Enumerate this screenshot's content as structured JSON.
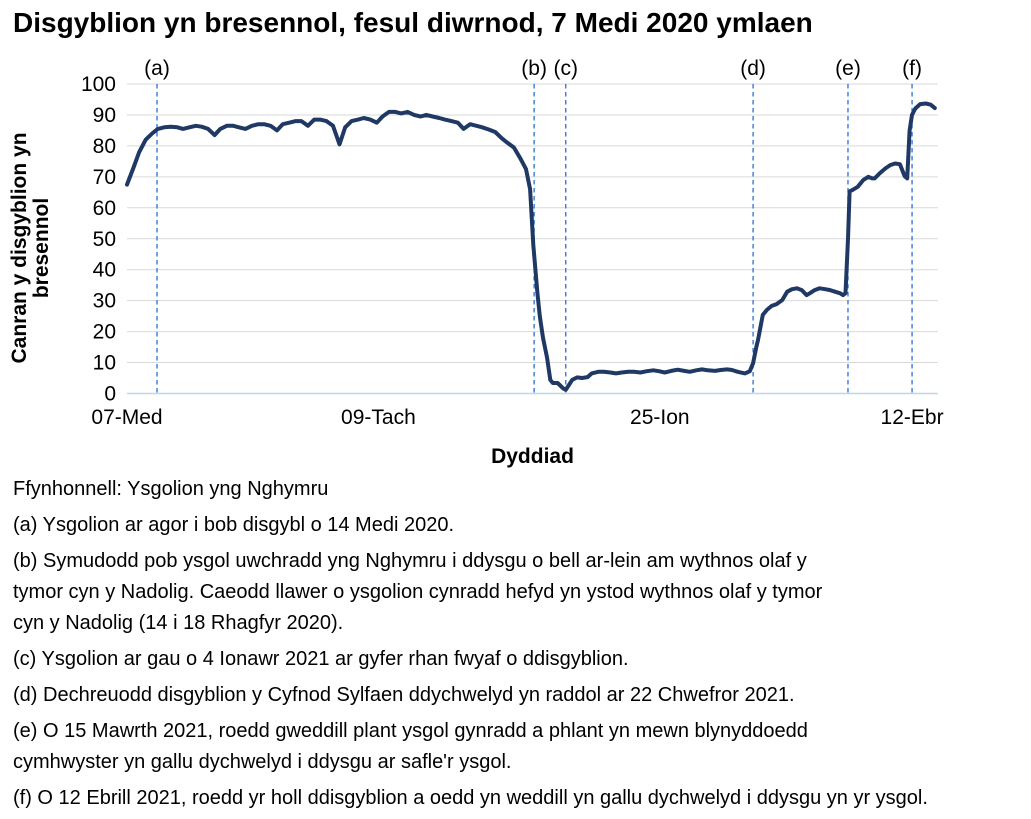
{
  "title": "Disgyblion yn bresennol, fesul diwrnod, 7 Medi 2020 ymlaen",
  "chart_data": {
    "type": "line",
    "title": "Disgyblion yn bresennol, fesul diwrnod, 7 Medi 2020 ymlaen",
    "xlabel": "Dyddiad",
    "ylabel": "Canran y disgyblion yn bresennol",
    "ylabel_lines": [
      "Canran y disgyblion yn",
      "bresennol"
    ],
    "ylim": [
      0,
      100
    ],
    "yticks": [
      0,
      10,
      20,
      30,
      40,
      50,
      60,
      70,
      80,
      90,
      100
    ],
    "x_ticks": [
      {
        "label": "07-Med",
        "f": 0.0
      },
      {
        "label": "09-Tach",
        "f": 0.31
      },
      {
        "label": "25-Ion",
        "f": 0.657
      },
      {
        "label": "12-Ebr",
        "f": 0.968
      }
    ],
    "annotations": [
      {
        "label": "(a)",
        "f": 0.037
      },
      {
        "label": "(b)",
        "f": 0.502
      },
      {
        "label": "(c)",
        "f": 0.541
      },
      {
        "label": "(d)",
        "f": 0.772
      },
      {
        "label": "(e)",
        "f": 0.889
      },
      {
        "label": "(f)",
        "f": 0.968
      }
    ],
    "colors": {
      "line": "#1f3864",
      "grid": "#d9d9d9",
      "baseline": "#bdd7ee",
      "annotation_line": "#2b6fd9",
      "text": "#000000"
    },
    "series": [
      {
        "name": "Canran y disgyblion yn bresennol",
        "points": [
          [
            0.0,
            67.5
          ],
          [
            0.008,
            73
          ],
          [
            0.015,
            78
          ],
          [
            0.023,
            82
          ],
          [
            0.031,
            84
          ],
          [
            0.038,
            85.5
          ],
          [
            0.046,
            86
          ],
          [
            0.054,
            86.2
          ],
          [
            0.062,
            86
          ],
          [
            0.069,
            85.5
          ],
          [
            0.077,
            86
          ],
          [
            0.085,
            86.5
          ],
          [
            0.092,
            86.2
          ],
          [
            0.1,
            85.5
          ],
          [
            0.108,
            83.5
          ],
          [
            0.115,
            85.5
          ],
          [
            0.123,
            86.5
          ],
          [
            0.131,
            86.5
          ],
          [
            0.138,
            86
          ],
          [
            0.146,
            85.5
          ],
          [
            0.154,
            86.5
          ],
          [
            0.162,
            87
          ],
          [
            0.169,
            87
          ],
          [
            0.177,
            86.5
          ],
          [
            0.185,
            85
          ],
          [
            0.192,
            87
          ],
          [
            0.2,
            87.5
          ],
          [
            0.208,
            88
          ],
          [
            0.215,
            88
          ],
          [
            0.223,
            86.5
          ],
          [
            0.231,
            88.5
          ],
          [
            0.238,
            88.5
          ],
          [
            0.246,
            88
          ],
          [
            0.254,
            86.5
          ],
          [
            0.262,
            80.5
          ],
          [
            0.269,
            86
          ],
          [
            0.277,
            88
          ],
          [
            0.285,
            88.5
          ],
          [
            0.292,
            89
          ],
          [
            0.3,
            88.5
          ],
          [
            0.308,
            87.5
          ],
          [
            0.315,
            89.5
          ],
          [
            0.323,
            91
          ],
          [
            0.331,
            91
          ],
          [
            0.338,
            90.5
          ],
          [
            0.346,
            91
          ],
          [
            0.354,
            90
          ],
          [
            0.362,
            89.5
          ],
          [
            0.369,
            90
          ],
          [
            0.377,
            89.5
          ],
          [
            0.385,
            89
          ],
          [
            0.392,
            88.5
          ],
          [
            0.4,
            88
          ],
          [
            0.408,
            87.5
          ],
          [
            0.415,
            85.5
          ],
          [
            0.423,
            87
          ],
          [
            0.431,
            86.5
          ],
          [
            0.438,
            86
          ],
          [
            0.446,
            85.3
          ],
          [
            0.454,
            84.5
          ],
          [
            0.462,
            82.5
          ],
          [
            0.469,
            81
          ],
          [
            0.477,
            79.5
          ],
          [
            0.485,
            76
          ],
          [
            0.492,
            72.5
          ],
          [
            0.497,
            66
          ],
          [
            0.501,
            48
          ],
          [
            0.506,
            32.5
          ],
          [
            0.509,
            25
          ],
          [
            0.513,
            18
          ],
          [
            0.518,
            11.5
          ],
          [
            0.522,
            4.4
          ],
          [
            0.525,
            3.4
          ],
          [
            0.531,
            3.4
          ],
          [
            0.538,
            1.6
          ],
          [
            0.541,
            1.2
          ],
          [
            0.549,
            4.4
          ],
          [
            0.555,
            5.2
          ],
          [
            0.561,
            5.0
          ],
          [
            0.568,
            5.3
          ],
          [
            0.573,
            6.5
          ],
          [
            0.581,
            7
          ],
          [
            0.588,
            7
          ],
          [
            0.596,
            6.8
          ],
          [
            0.603,
            6.5
          ],
          [
            0.61,
            6.8
          ],
          [
            0.618,
            7
          ],
          [
            0.625,
            7
          ],
          [
            0.633,
            6.8
          ],
          [
            0.641,
            7.2
          ],
          [
            0.649,
            7.5
          ],
          [
            0.656,
            7.2
          ],
          [
            0.663,
            6.8
          ],
          [
            0.671,
            7.3
          ],
          [
            0.679,
            7.7
          ],
          [
            0.687,
            7.3
          ],
          [
            0.694,
            7
          ],
          [
            0.702,
            7.5
          ],
          [
            0.709,
            7.8
          ],
          [
            0.716,
            7.5
          ],
          [
            0.725,
            7.3
          ],
          [
            0.732,
            7.6
          ],
          [
            0.74,
            7.8
          ],
          [
            0.746,
            7.6
          ],
          [
            0.753,
            7.0
          ],
          [
            0.762,
            6.5
          ],
          [
            0.768,
            7.2
          ],
          [
            0.772,
            9.8
          ],
          [
            0.776,
            15
          ],
          [
            0.778,
            17.3
          ],
          [
            0.782,
            22.7
          ],
          [
            0.784,
            25.4
          ],
          [
            0.789,
            27
          ],
          [
            0.795,
            28.3
          ],
          [
            0.801,
            28.9
          ],
          [
            0.808,
            30.2
          ],
          [
            0.814,
            32.9
          ],
          [
            0.82,
            33.7
          ],
          [
            0.826,
            34
          ],
          [
            0.832,
            33.4
          ],
          [
            0.838,
            31.8
          ],
          [
            0.842,
            32.4
          ],
          [
            0.848,
            33.4
          ],
          [
            0.854,
            34
          ],
          [
            0.861,
            33.7
          ],
          [
            0.867,
            33.4
          ],
          [
            0.873,
            32.9
          ],
          [
            0.879,
            32.4
          ],
          [
            0.883,
            31.8
          ],
          [
            0.886,
            32.4
          ],
          [
            0.889,
            50
          ],
          [
            0.891,
            65.3
          ],
          [
            0.895,
            65.8
          ],
          [
            0.901,
            66.8
          ],
          [
            0.908,
            69
          ],
          [
            0.914,
            70
          ],
          [
            0.919,
            69.5
          ],
          [
            0.922,
            69.5
          ],
          [
            0.928,
            71.1
          ],
          [
            0.935,
            72.7
          ],
          [
            0.941,
            73.8
          ],
          [
            0.947,
            74.3
          ],
          [
            0.953,
            74.1
          ],
          [
            0.959,
            70.2
          ],
          [
            0.962,
            69.5
          ],
          [
            0.965,
            85
          ],
          [
            0.968,
            90
          ],
          [
            0.972,
            92.1
          ],
          [
            0.978,
            93.5
          ],
          [
            0.985,
            93.7
          ],
          [
            0.991,
            93.3
          ],
          [
            0.996,
            92.2
          ]
        ]
      }
    ]
  },
  "footnotes": {
    "source": "Ffynhonnell: Ysgolion yng Nghymru",
    "items": [
      "(a) Ysgolion ar agor i bob disgybl o 14 Medi 2020.",
      "(b) Symudodd pob ysgol uwchradd yng Nghymru i ddysgu o bell ar-lein am wythnos olaf y\ntymor cyn y Nadolig. Caeodd llawer o ysgolion cynradd hefyd yn ystod wythnos olaf y tymor\ncyn y Nadolig (14 i 18 Rhagfyr 2020).",
      "(c) Ysgolion ar gau o 4 Ionawr 2021 ar gyfer rhan fwyaf o ddisgyblion.",
      "(d) Dechreuodd disgyblion y Cyfnod Sylfaen ddychwelyd yn raddol ar 22 Chwefror 2021.",
      "(e) O 15 Mawrth 2021, roedd gweddill plant ysgol gynradd a phlant yn mewn blynyddoedd\ncymhwyster yn gallu dychwelyd i ddysgu ar safle'r ysgol.",
      "(f) O 12 Ebrill 2021, roedd yr holl ddisgyblion a oedd yn weddill yn gallu dychwelyd i ddysgu yn yr ysgol."
    ]
  }
}
